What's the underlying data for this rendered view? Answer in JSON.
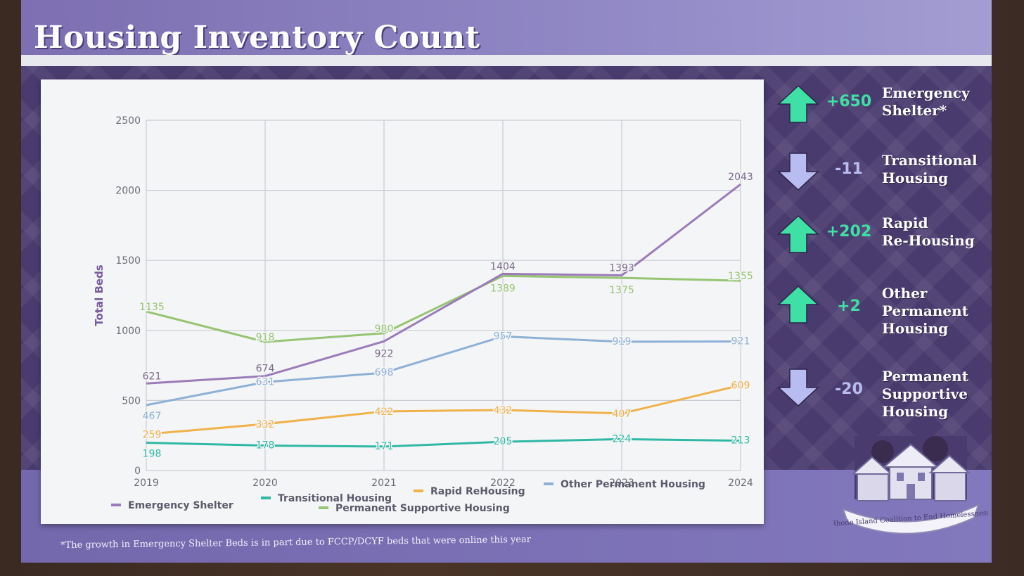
{
  "slide": {
    "title": "Housing Inventory Count",
    "footnote": "*The growth in Emergency Shelter Beds is in part due to FCCP/DCYF beds  that were online this year"
  },
  "colors": {
    "accent_up": "#3fe0a6",
    "accent_down": "#b9bcf0",
    "slide_purple": "#5f4f8e"
  },
  "stats": [
    {
      "direction": "up",
      "icon": "arrow-up-icon",
      "value": "+650",
      "label": [
        "Emergency",
        "Shelter*"
      ]
    },
    {
      "direction": "down",
      "icon": "arrow-down-icon",
      "value": "-11",
      "label": [
        "Transitional",
        "Housing"
      ]
    },
    {
      "direction": "up",
      "icon": "arrow-up-icon",
      "value": "+202",
      "label": [
        "Rapid",
        "Re-Housing"
      ]
    },
    {
      "direction": "up",
      "icon": "arrow-up-icon",
      "value": "+2",
      "label": [
        "Other",
        "Permanent",
        "Housing"
      ]
    },
    {
      "direction": "down",
      "icon": "arrow-down-icon",
      "value": "-20",
      "label": [
        "Permanent",
        "Supportive",
        "Housing"
      ]
    }
  ],
  "logo": {
    "text": "Rhode Island Coalition to End Homelessness"
  },
  "chart_data": {
    "type": "line",
    "title": "",
    "xlabel": "",
    "ylabel": "Total Beds",
    "x": [
      "2019",
      "2020",
      "2021",
      "2022",
      "2023",
      "2024"
    ],
    "yticks": [
      "0",
      "500",
      "1000",
      "1500",
      "2000",
      "2500"
    ],
    "ylim": [
      0,
      2500
    ],
    "grid": true,
    "legend_position": "bottom",
    "series": [
      {
        "name": "Emergency Shelter",
        "color": "#9b7bb8",
        "values": [
          621,
          674,
          922,
          1404,
          1393,
          2043
        ]
      },
      {
        "name": "Transitional Housing",
        "color": "#2fb8a3",
        "values": [
          198,
          178,
          171,
          205,
          224,
          213
        ]
      },
      {
        "name": "Rapid ReHousing",
        "color": "#f0b14a",
        "values": [
          259,
          332,
          422,
          432,
          407,
          609
        ]
      },
      {
        "name": "Other Permanent Housing",
        "color": "#8fb0d6",
        "values": [
          467,
          631,
          698,
          957,
          919,
          921
        ]
      },
      {
        "name": "Permanent Supportive Housing",
        "color": "#96c471",
        "values": [
          1135,
          918,
          980,
          1389,
          1375,
          1355
        ]
      }
    ]
  }
}
